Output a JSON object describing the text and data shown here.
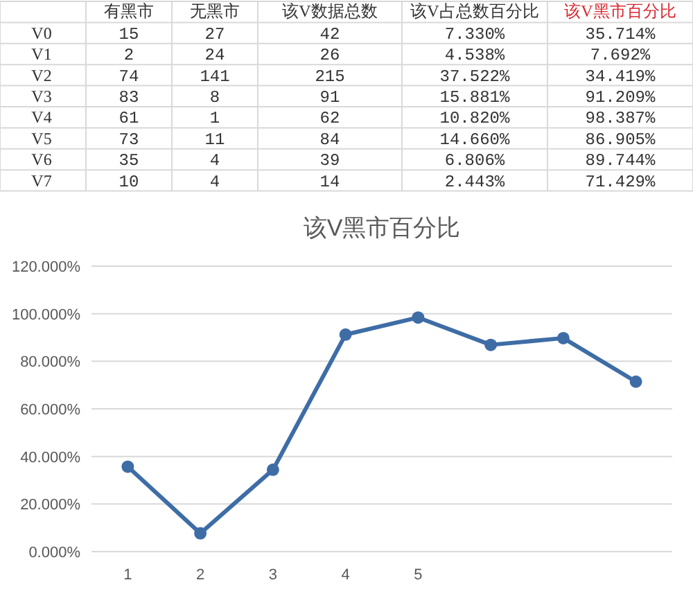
{
  "chart_data": [
    {
      "type": "other",
      "categories": [
        null,
        "有黑市",
        "无黑市",
        "该V数据总数",
        "该V占总数百分比",
        "该V黑市百分比"
      ],
      "colors": [
        "#333333",
        "#333333",
        "#333333",
        "#333333",
        "#333333",
        "#d9272e"
      ],
      "y_categories": [
        "V0",
        "V1",
        "V2",
        "V3",
        "V4",
        "V5",
        "V6",
        "V7"
      ],
      "cell_labels": [
        [
          "15",
          "27",
          "42",
          "7.330%",
          "35.714%"
        ],
        [
          "2",
          "24",
          "26",
          "4.538%",
          "7.692%"
        ],
        [
          "74",
          "141",
          "215",
          "37.522%",
          "34.419%"
        ],
        [
          "83",
          "8",
          "91",
          "15.881%",
          "91.209%"
        ],
        [
          "61",
          "1",
          "62",
          "10.820%",
          "98.387%"
        ],
        [
          "73",
          "11",
          "84",
          "14.660%",
          "86.905%"
        ],
        [
          "35",
          "4",
          "39",
          "6.806%",
          "89.744%"
        ],
        [
          "10",
          "4",
          "14",
          "2.443%",
          "71.429%"
        ]
      ]
    },
    {
      "type": "line",
      "title": "该V黑市百分比",
      "categories": [
        "1",
        "2",
        "3",
        "4",
        "5",
        null,
        null,
        null
      ],
      "series": [
        {
          "color": "#3e6da6",
          "values": [
            35.714,
            7.692,
            34.419,
            91.209,
            98.387,
            86.905,
            89.744,
            71.429
          ]
        }
      ],
      "ylim": [
        0,
        120
      ],
      "yticks": [
        {
          "value": 0,
          "label": "0.000%"
        },
        {
          "value": 20,
          "label": "20.000%"
        },
        {
          "value": 40,
          "label": "40.000%"
        },
        {
          "value": 60,
          "label": "60.000%"
        },
        {
          "value": 80,
          "label": "80.000%"
        },
        {
          "value": 100,
          "label": "100.000%"
        },
        {
          "value": 120,
          "label": "120.000%"
        }
      ],
      "grid": "y",
      "marker": "circle",
      "line_style": "solid"
    }
  ]
}
